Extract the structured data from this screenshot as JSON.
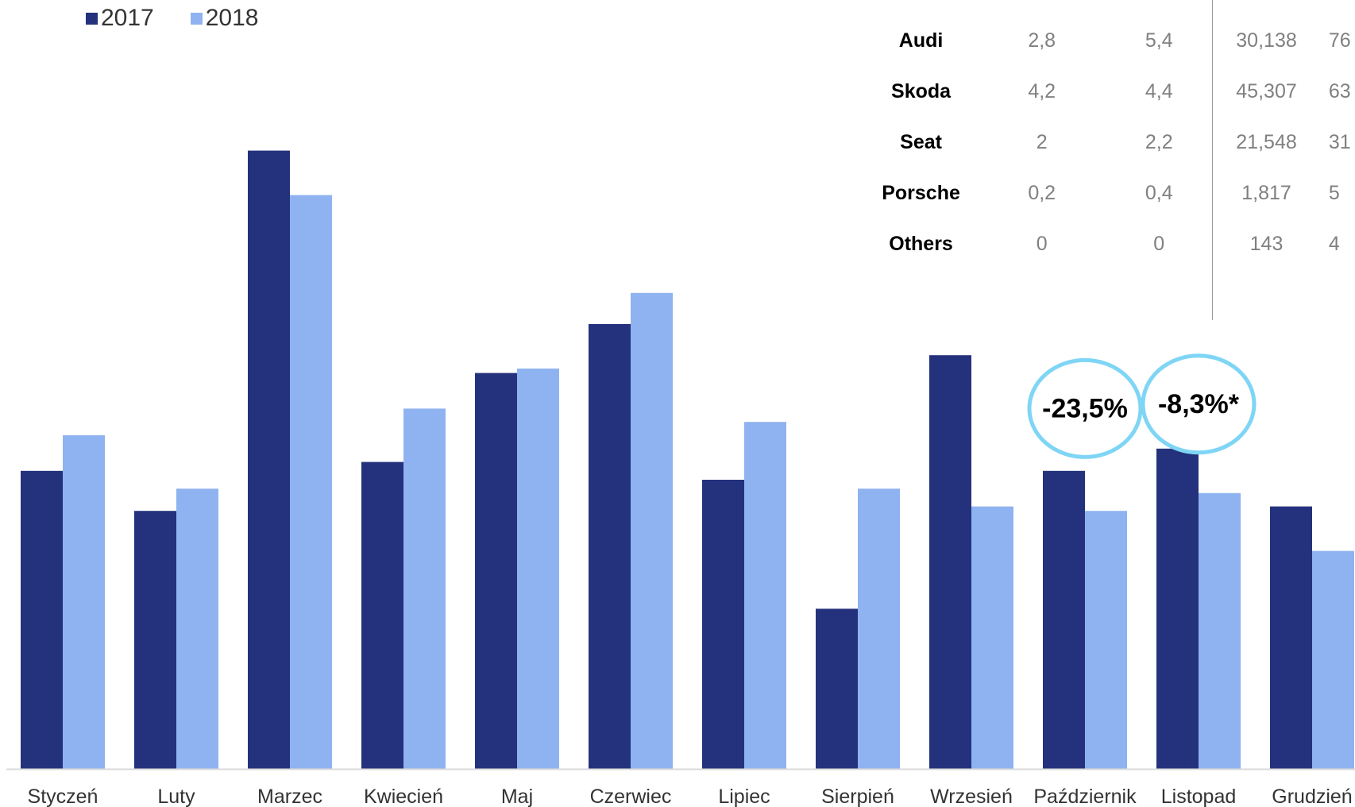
{
  "chart_data": {
    "type": "bar",
    "title": "",
    "xlabel": "",
    "ylabel": "",
    "categories": [
      "Styczeń",
      "Luty",
      "Marzec",
      "Kwiecień",
      "Maj",
      "Czerwiec",
      "Lipiec",
      "Sierpień",
      "Wrzesień",
      "Październik",
      "Listopad",
      "Grudzień"
    ],
    "series": [
      {
        "name": "2017",
        "color": "#24327d",
        "values": [
          67,
          58,
          139,
          69,
          89,
          100,
          65,
          36,
          93,
          67,
          72,
          59
        ]
      },
      {
        "name": "2018",
        "color": "#8fb3f0",
        "values": [
          75,
          63,
          129,
          81,
          90,
          107,
          78,
          63,
          59,
          58,
          62,
          49
        ]
      }
    ],
    "ylim": [
      0,
      160
    ],
    "grid": false,
    "legend": "top-left",
    "annotations": [
      {
        "text": "-23,5%",
        "category": "Październik",
        "y": 81
      },
      {
        "text": "-8,3%*",
        "category": "Listopad",
        "y": 82
      }
    ],
    "annotation_color": "#7fd5f5"
  },
  "brand_table": {
    "rows": [
      {
        "brand": "Audi",
        "v1": "2,8",
        "v2": "5,4",
        "v3": "30,138",
        "v4": "76"
      },
      {
        "brand": "Skoda",
        "v1": "4,2",
        "v2": "4,4",
        "v3": "45,307",
        "v4": "63"
      },
      {
        "brand": "Seat",
        "v1": "2",
        "v2": "2,2",
        "v3": "21,548",
        "v4": "31"
      },
      {
        "brand": "Porsche",
        "v1": "0,2",
        "v2": "0,4",
        "v3": "1,817",
        "v4": "5"
      },
      {
        "brand": "Others",
        "v1": "0",
        "v2": "0",
        "v3": "143",
        "v4": "4"
      }
    ]
  }
}
